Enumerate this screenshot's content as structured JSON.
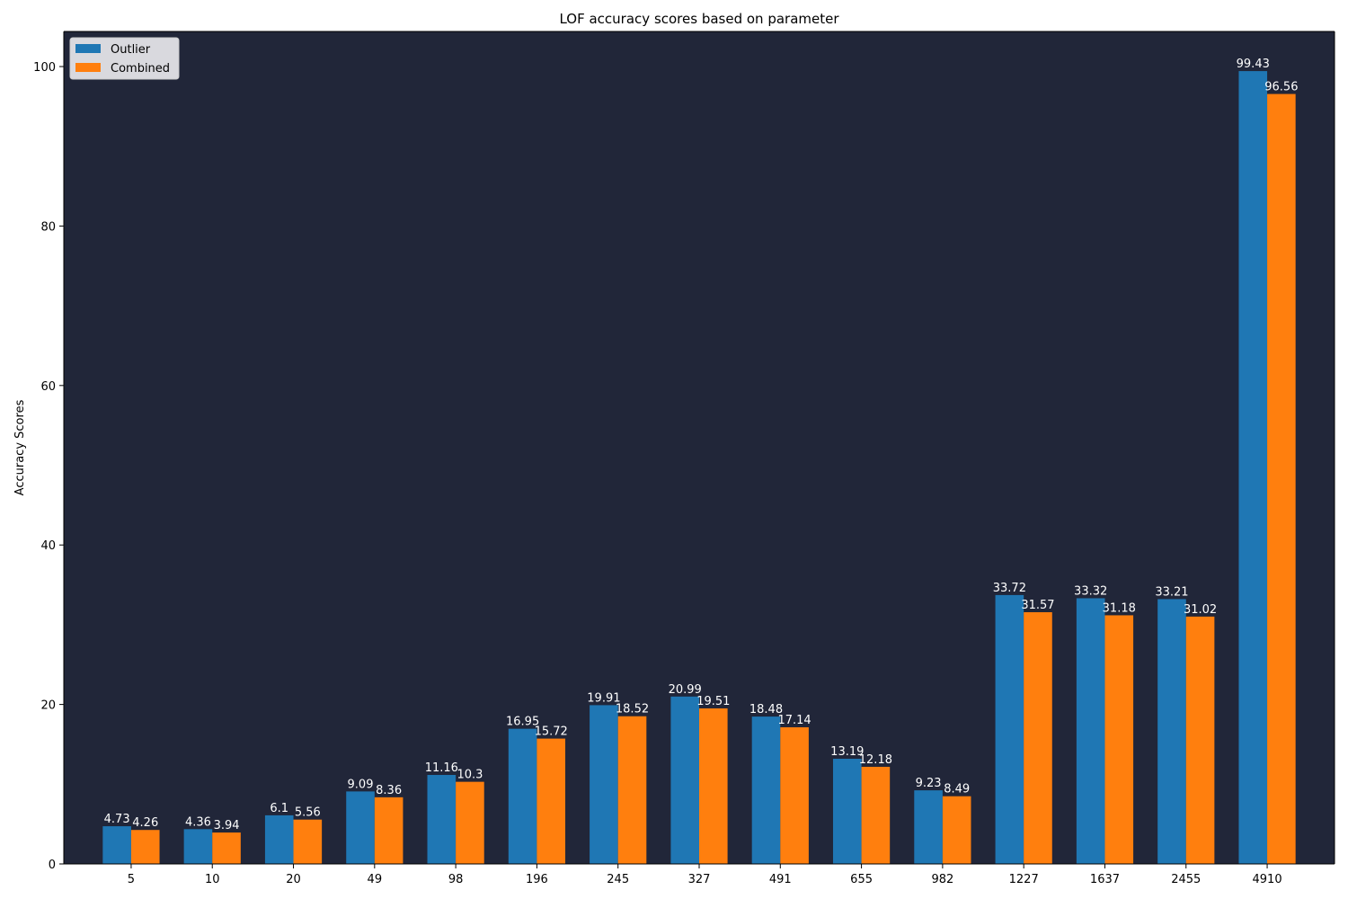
{
  "colors": {
    "plot_background": "#212639",
    "figure_background": "#ffffff",
    "outlier": "#1f77b4",
    "combined": "#ff7f0e",
    "bar_label": "#ffffff",
    "legend_background": "#d9d9de"
  },
  "chart_data": {
    "type": "bar",
    "title": "LOF accuracy scores based on parameter",
    "xlabel": "",
    "ylabel": "Accuracy Scores",
    "categories": [
      "5",
      "10",
      "20",
      "49",
      "98",
      "196",
      "245",
      "327",
      "491",
      "655",
      "982",
      "1227",
      "1637",
      "2455",
      "4910"
    ],
    "series": [
      {
        "name": "Outlier",
        "values": [
          4.73,
          4.36,
          6.1,
          9.09,
          11.16,
          16.95,
          19.91,
          20.99,
          18.48,
          13.19,
          9.23,
          33.72,
          33.32,
          33.21,
          99.43
        ]
      },
      {
        "name": "Combined",
        "values": [
          4.26,
          3.94,
          5.56,
          8.36,
          10.3,
          15.72,
          18.52,
          19.51,
          17.14,
          12.18,
          8.49,
          31.57,
          31.18,
          31.02,
          96.56
        ]
      }
    ],
    "ylim": [
      0,
      104.4
    ],
    "yticks": [
      0,
      20,
      40,
      60,
      80,
      100
    ],
    "legend_position": "top-left",
    "grid": false
  }
}
